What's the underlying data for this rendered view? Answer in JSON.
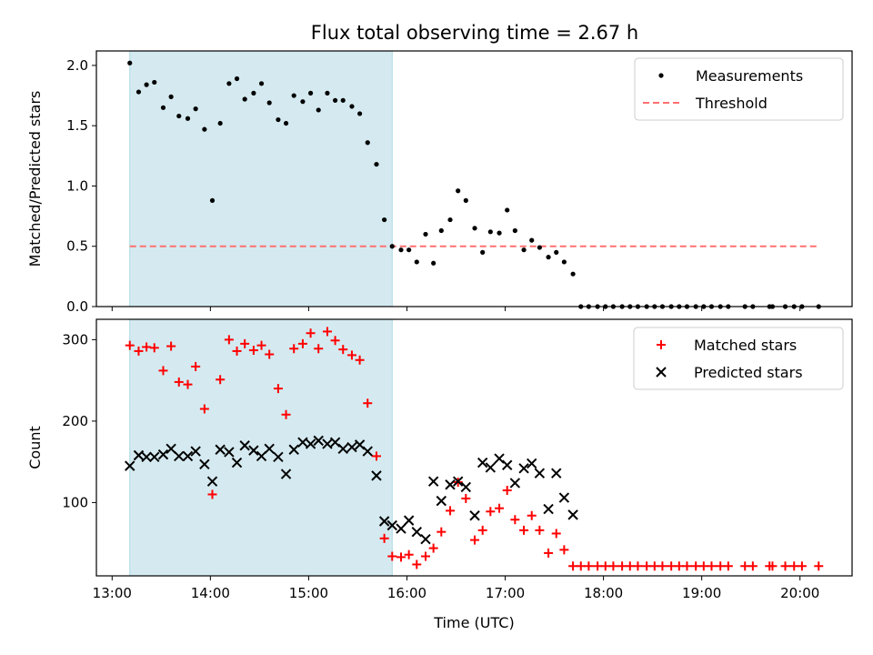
{
  "chart_data": {
    "title": "Flux total observing time = 2.67 h",
    "xlabel": "Time (UTC)",
    "x_tick_labels": [
      "13:00",
      "14:00",
      "15:00",
      "16:00",
      "17:00",
      "18:00",
      "19:00",
      "20:00"
    ],
    "x_tick_hours": [
      13,
      14,
      15,
      16,
      17,
      18,
      19,
      20
    ],
    "xlim": [
      12.84,
      20.53
    ],
    "shaded_span_hours": [
      13.18,
      15.85
    ],
    "colors": {
      "measurement": "#000000",
      "threshold": "#ff7070",
      "matched": "#ff0000",
      "predicted": "#000000",
      "shade": "#d4eaf0",
      "shade_edge": "#a8d8e2"
    },
    "panels": [
      {
        "type": "scatter",
        "ylabel": "Matched/Predicted stars",
        "ylim": [
          0,
          2.12
        ],
        "y_ticks": [
          "0.0",
          "0.5",
          "1.0",
          "1.5",
          "2.0"
        ],
        "y_tick_values": [
          0,
          0.5,
          1.0,
          1.5,
          2.0
        ],
        "legend": {
          "position": "top-right",
          "entries": [
            "Measurements",
            "Threshold"
          ]
        },
        "threshold": {
          "value": 0.5,
          "x_start": 13.18,
          "x_end": 20.2
        },
        "series": [
          {
            "name": "Measurements",
            "points": [
              [
                13.18,
                2.02
              ],
              [
                13.27,
                1.78
              ],
              [
                13.35,
                1.84
              ],
              [
                13.43,
                1.86
              ],
              [
                13.52,
                1.65
              ],
              [
                13.6,
                1.74
              ],
              [
                13.68,
                1.58
              ],
              [
                13.77,
                1.56
              ],
              [
                13.85,
                1.64
              ],
              [
                13.94,
                1.47
              ],
              [
                14.02,
                0.88
              ],
              [
                14.1,
                1.52
              ],
              [
                14.19,
                1.85
              ],
              [
                14.27,
                1.89
              ],
              [
                14.35,
                1.72
              ],
              [
                14.44,
                1.77
              ],
              [
                14.52,
                1.85
              ],
              [
                14.6,
                1.69
              ],
              [
                14.69,
                1.55
              ],
              [
                14.77,
                1.52
              ],
              [
                14.85,
                1.75
              ],
              [
                14.94,
                1.7
              ],
              [
                15.02,
                1.77
              ],
              [
                15.1,
                1.63
              ],
              [
                15.19,
                1.77
              ],
              [
                15.27,
                1.71
              ],
              [
                15.35,
                1.71
              ],
              [
                15.44,
                1.66
              ],
              [
                15.52,
                1.6
              ],
              [
                15.6,
                1.36
              ],
              [
                15.69,
                1.18
              ],
              [
                15.77,
                0.72
              ],
              [
                15.85,
                0.5
              ],
              [
                15.94,
                0.47
              ],
              [
                16.02,
                0.47
              ],
              [
                16.1,
                0.37
              ],
              [
                16.19,
                0.6
              ],
              [
                16.27,
                0.36
              ],
              [
                16.35,
                0.63
              ],
              [
                16.44,
                0.72
              ],
              [
                16.52,
                0.96
              ],
              [
                16.6,
                0.88
              ],
              [
                16.69,
                0.65
              ],
              [
                16.77,
                0.45
              ],
              [
                16.85,
                0.62
              ],
              [
                16.94,
                0.61
              ],
              [
                17.02,
                0.8
              ],
              [
                17.1,
                0.63
              ],
              [
                17.19,
                0.47
              ],
              [
                17.27,
                0.55
              ],
              [
                17.35,
                0.49
              ],
              [
                17.44,
                0.41
              ],
              [
                17.52,
                0.45
              ],
              [
                17.6,
                0.37
              ],
              [
                17.69,
                0.27
              ],
              [
                17.77,
                0
              ],
              [
                17.85,
                0
              ],
              [
                17.94,
                0
              ],
              [
                18.02,
                0
              ],
              [
                18.1,
                0
              ],
              [
                18.19,
                0
              ],
              [
                18.27,
                0
              ],
              [
                18.35,
                0
              ],
              [
                18.44,
                0
              ],
              [
                18.52,
                0
              ],
              [
                18.6,
                0
              ],
              [
                18.69,
                0
              ],
              [
                18.77,
                0
              ],
              [
                18.85,
                0
              ],
              [
                18.94,
                0
              ],
              [
                19.02,
                0
              ],
              [
                19.1,
                0
              ],
              [
                19.19,
                0
              ],
              [
                19.27,
                0
              ],
              [
                19.44,
                0
              ],
              [
                19.52,
                0
              ],
              [
                19.69,
                0
              ],
              [
                19.72,
                0
              ],
              [
                19.85,
                0
              ],
              [
                19.94,
                0
              ],
              [
                20.02,
                0
              ],
              [
                20.19,
                0
              ]
            ]
          }
        ]
      },
      {
        "type": "scatter",
        "ylabel": "Count",
        "ylim": [
          10,
          325
        ],
        "y_ticks": [
          "100",
          "200",
          "300"
        ],
        "y_tick_values": [
          100,
          200,
          300
        ],
        "legend": {
          "position": "top-right",
          "entries": [
            "Matched stars",
            "Predicted stars"
          ]
        },
        "series": [
          {
            "name": "Matched stars",
            "marker": "+",
            "points": [
              [
                13.18,
                293
              ],
              [
                13.27,
                286
              ],
              [
                13.35,
                291
              ],
              [
                13.43,
                290
              ],
              [
                13.52,
                262
              ],
              [
                13.6,
                292
              ],
              [
                13.68,
                248
              ],
              [
                13.77,
                245
              ],
              [
                13.85,
                267
              ],
              [
                13.94,
                215
              ],
              [
                14.02,
                110
              ],
              [
                14.1,
                251
              ],
              [
                14.19,
                300
              ],
              [
                14.27,
                286
              ],
              [
                14.35,
                295
              ],
              [
                14.44,
                287
              ],
              [
                14.52,
                293
              ],
              [
                14.6,
                282
              ],
              [
                14.69,
                240
              ],
              [
                14.77,
                208
              ],
              [
                14.85,
                289
              ],
              [
                14.94,
                295
              ],
              [
                15.02,
                308
              ],
              [
                15.1,
                289
              ],
              [
                15.19,
                310
              ],
              [
                15.27,
                299
              ],
              [
                15.35,
                288
              ],
              [
                15.44,
                281
              ],
              [
                15.52,
                275
              ],
              [
                15.6,
                222
              ],
              [
                15.69,
                157
              ],
              [
                15.77,
                56
              ],
              [
                15.85,
                34
              ],
              [
                15.94,
                33
              ],
              [
                16.02,
                36
              ],
              [
                16.1,
                24
              ],
              [
                16.19,
                34
              ],
              [
                16.27,
                44
              ],
              [
                16.35,
                64
              ],
              [
                16.44,
                90
              ],
              [
                16.52,
                125
              ],
              [
                16.6,
                105
              ],
              [
                16.69,
                54
              ],
              [
                16.77,
                66
              ],
              [
                16.85,
                89
              ],
              [
                16.94,
                93
              ],
              [
                17.02,
                115
              ],
              [
                17.1,
                79
              ],
              [
                17.19,
                66
              ],
              [
                17.27,
                84
              ],
              [
                17.35,
                66
              ],
              [
                17.44,
                38
              ],
              [
                17.52,
                62
              ],
              [
                17.6,
                42
              ],
              [
                17.69,
                22
              ],
              [
                17.77,
                22
              ],
              [
                17.85,
                22
              ],
              [
                17.94,
                22
              ],
              [
                18.02,
                22
              ],
              [
                18.1,
                22
              ],
              [
                18.19,
                22
              ],
              [
                18.27,
                22
              ],
              [
                18.35,
                22
              ],
              [
                18.44,
                22
              ],
              [
                18.52,
                22
              ],
              [
                18.6,
                22
              ],
              [
                18.69,
                22
              ],
              [
                18.77,
                22
              ],
              [
                18.85,
                22
              ],
              [
                18.94,
                22
              ],
              [
                19.02,
                22
              ],
              [
                19.1,
                22
              ],
              [
                19.19,
                22
              ],
              [
                19.27,
                22
              ],
              [
                19.44,
                22
              ],
              [
                19.52,
                22
              ],
              [
                19.69,
                22
              ],
              [
                19.72,
                22
              ],
              [
                19.85,
                22
              ],
              [
                19.94,
                22
              ],
              [
                20.02,
                22
              ],
              [
                20.19,
                22
              ]
            ]
          },
          {
            "name": "Predicted stars",
            "marker": "x",
            "points": [
              [
                13.18,
                145
              ],
              [
                13.27,
                158
              ],
              [
                13.35,
                156
              ],
              [
                13.43,
                156
              ],
              [
                13.52,
                159
              ],
              [
                13.6,
                166
              ],
              [
                13.68,
                157
              ],
              [
                13.77,
                157
              ],
              [
                13.85,
                163
              ],
              [
                13.94,
                147
              ],
              [
                14.02,
                126
              ],
              [
                14.1,
                165
              ],
              [
                14.19,
                162
              ],
              [
                14.27,
                149
              ],
              [
                14.35,
                170
              ],
              [
                14.44,
                164
              ],
              [
                14.52,
                157
              ],
              [
                14.6,
                166
              ],
              [
                14.69,
                156
              ],
              [
                14.77,
                135
              ],
              [
                14.85,
                165
              ],
              [
                14.94,
                174
              ],
              [
                15.02,
                172
              ],
              [
                15.1,
                176
              ],
              [
                15.19,
                172
              ],
              [
                15.27,
                174
              ],
              [
                15.35,
                166
              ],
              [
                15.44,
                168
              ],
              [
                15.52,
                171
              ],
              [
                15.6,
                163
              ],
              [
                15.69,
                133
              ],
              [
                15.77,
                77
              ],
              [
                15.85,
                72
              ],
              [
                15.94,
                68
              ],
              [
                16.02,
                78
              ],
              [
                16.1,
                64
              ],
              [
                16.19,
                55
              ],
              [
                16.27,
                126
              ],
              [
                16.35,
                102
              ],
              [
                16.44,
                122
              ],
              [
                16.52,
                126
              ],
              [
                16.6,
                119
              ],
              [
                16.69,
                84
              ],
              [
                16.77,
                149
              ],
              [
                16.85,
                143
              ],
              [
                16.94,
                154
              ],
              [
                17.02,
                146
              ],
              [
                17.1,
                124
              ],
              [
                17.19,
                142
              ],
              [
                17.27,
                148
              ],
              [
                17.35,
                136
              ],
              [
                17.44,
                92
              ],
              [
                17.52,
                136
              ],
              [
                17.6,
                106
              ],
              [
                17.69,
                85
              ]
            ]
          }
        ]
      }
    ]
  }
}
